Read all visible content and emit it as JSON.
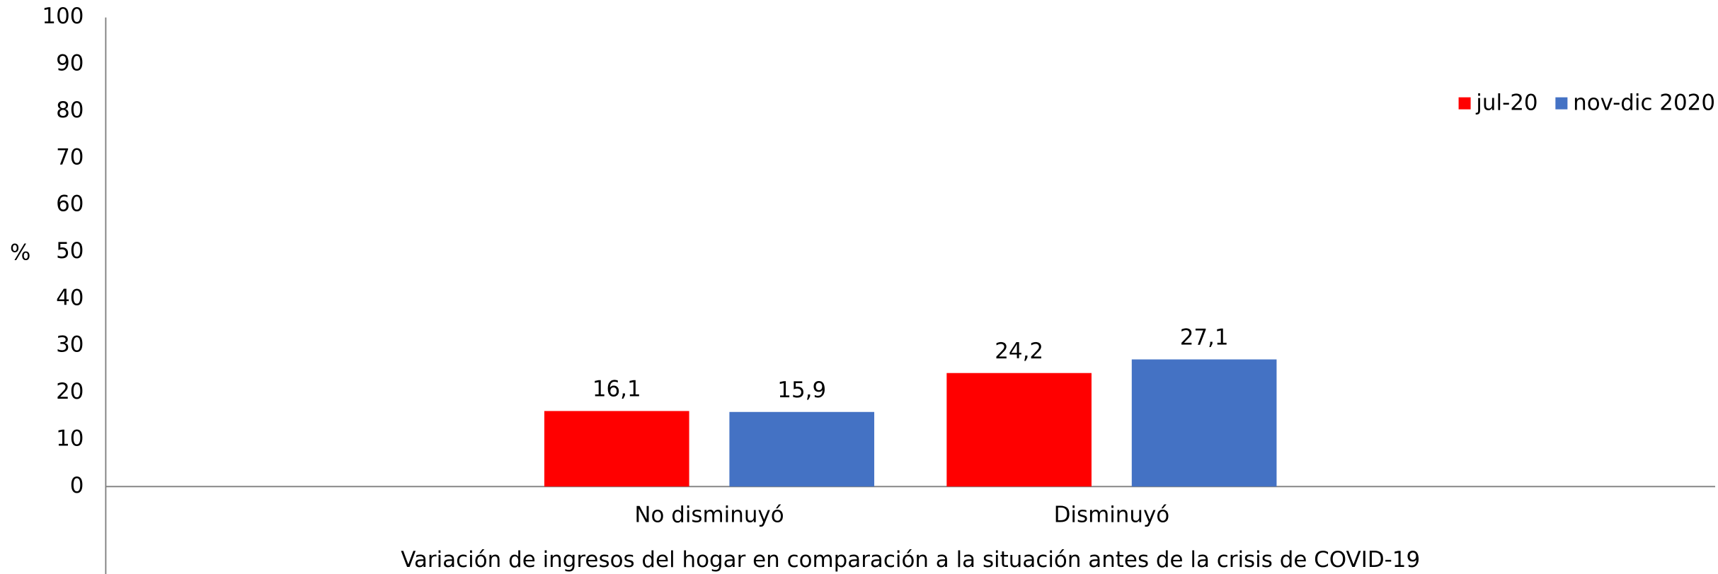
{
  "chart_data": {
    "type": "bar",
    "categories": [
      null,
      "No disminuyó",
      "Disminuyó",
      null
    ],
    "series": [
      {
        "name": "jul-20",
        "color": "#ff0000",
        "values": [
          null,
          16.1,
          24.2,
          null
        ],
        "value_labels": [
          null,
          "16,1",
          "24,2",
          null
        ]
      },
      {
        "name": "nov-dic 2020",
        "color": "#4472c4",
        "values": [
          null,
          15.9,
          27.1,
          null
        ],
        "value_labels": [
          null,
          "15,9",
          "27,1",
          null
        ]
      }
    ],
    "ylabel": "%",
    "xlabel": "Variación de ingresos del hogar en comparación a la situación antes de la crisis de COVID-19",
    "ylim": [
      0,
      100
    ],
    "yticks": [
      0,
      10,
      20,
      30,
      40,
      50,
      60,
      70,
      80,
      90,
      100
    ],
    "grid": false,
    "legend": "top-right"
  }
}
